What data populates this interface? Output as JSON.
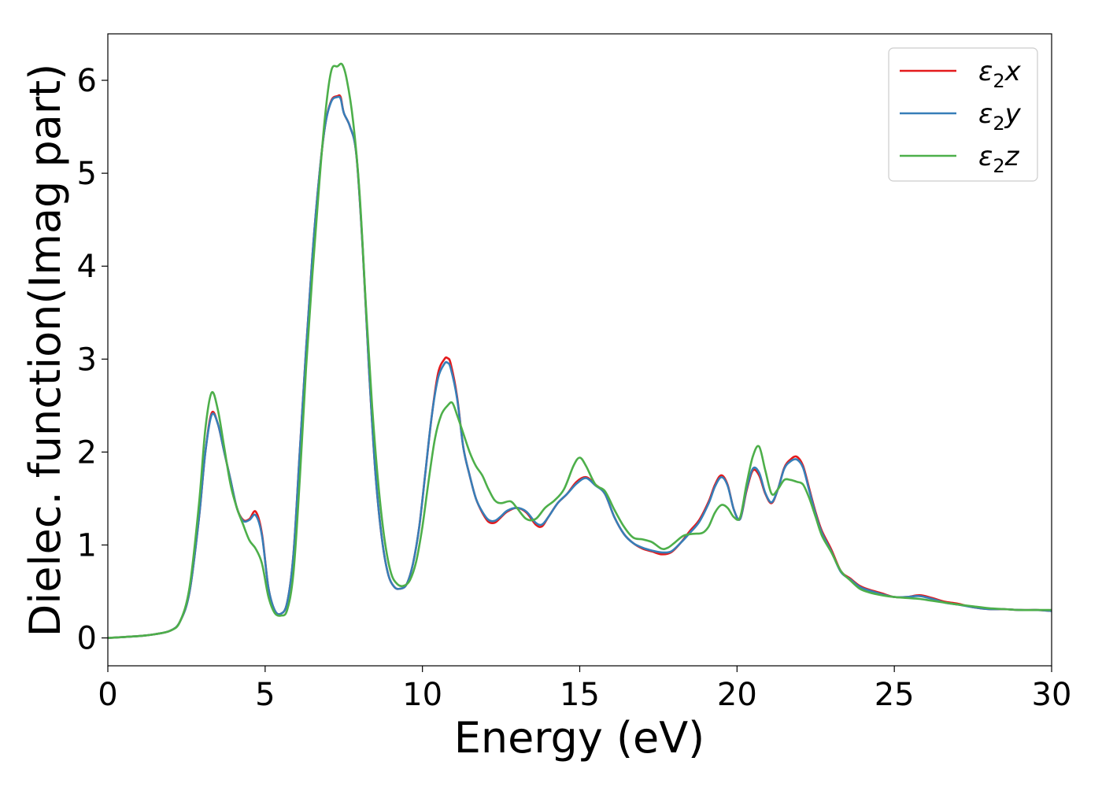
{
  "chart_data": {
    "type": "line",
    "title": "",
    "xlabel": "Energy (eV)",
    "ylabel": "Dielec. function(Imag part)",
    "xlim": [
      0,
      30
    ],
    "ylim": [
      -0.3,
      6.5
    ],
    "xticks": [
      0,
      5,
      10,
      15,
      20,
      25,
      30
    ],
    "yticks": [
      0,
      1,
      2,
      3,
      4,
      5,
      6
    ],
    "grid": false,
    "legend_position": "top-right",
    "series": [
      {
        "name": "ε2x",
        "legend_base": "ε",
        "legend_sub": "2",
        "legend_suffix": "x",
        "color": "#e41a1c",
        "x": [
          0,
          1,
          1.5,
          2,
          2.3,
          2.6,
          2.9,
          3.1,
          3.3,
          3.5,
          3.7,
          3.9,
          4.1,
          4.3,
          4.5,
          4.7,
          4.9,
          5.1,
          5.3,
          5.5,
          5.7,
          5.9,
          6.1,
          6.3,
          6.5,
          6.7,
          6.9,
          7.1,
          7.3,
          7.4,
          7.5,
          7.7,
          7.9,
          8.1,
          8.3,
          8.5,
          8.7,
          8.9,
          9.1,
          9.3,
          9.5,
          9.7,
          9.9,
          10.1,
          10.3,
          10.5,
          10.7,
          10.8,
          10.9,
          11.1,
          11.3,
          11.5,
          11.7,
          11.9,
          12.1,
          12.3,
          12.5,
          12.7,
          13.0,
          13.3,
          13.6,
          13.8,
          14.0,
          14.3,
          14.6,
          14.9,
          15.2,
          15.5,
          15.8,
          16.1,
          16.4,
          16.7,
          17.0,
          17.3,
          17.6,
          17.9,
          18.2,
          18.5,
          18.8,
          19.1,
          19.3,
          19.5,
          19.7,
          19.9,
          20.1,
          20.3,
          20.5,
          20.7,
          20.9,
          21.1,
          21.3,
          21.5,
          21.7,
          21.9,
          22.1,
          22.3,
          22.5,
          22.7,
          23.0,
          23.3,
          23.6,
          23.9,
          24.2,
          24.6,
          25.0,
          25.4,
          25.8,
          26.2,
          26.6,
          27.0,
          27.5,
          28.0,
          28.5,
          29.0,
          29.5,
          30.0
        ],
        "y": [
          0,
          0.02,
          0.04,
          0.08,
          0.18,
          0.5,
          1.3,
          2.0,
          2.42,
          2.3,
          2.0,
          1.7,
          1.4,
          1.27,
          1.28,
          1.36,
          1.12,
          0.55,
          0.3,
          0.26,
          0.38,
          0.9,
          2.0,
          3.1,
          4.1,
          4.9,
          5.5,
          5.78,
          5.83,
          5.82,
          5.65,
          5.5,
          5.2,
          4.2,
          2.9,
          1.8,
          1.1,
          0.7,
          0.55,
          0.53,
          0.58,
          0.8,
          1.2,
          1.8,
          2.4,
          2.85,
          3.0,
          3.01,
          2.95,
          2.6,
          2.05,
          1.75,
          1.5,
          1.35,
          1.25,
          1.24,
          1.3,
          1.36,
          1.4,
          1.35,
          1.22,
          1.2,
          1.3,
          1.45,
          1.55,
          1.68,
          1.73,
          1.65,
          1.55,
          1.3,
          1.12,
          1.02,
          0.96,
          0.93,
          0.9,
          0.92,
          1.02,
          1.15,
          1.27,
          1.47,
          1.65,
          1.75,
          1.65,
          1.38,
          1.28,
          1.58,
          1.8,
          1.75,
          1.55,
          1.45,
          1.6,
          1.83,
          1.92,
          1.95,
          1.85,
          1.6,
          1.35,
          1.15,
          0.95,
          0.72,
          0.64,
          0.56,
          0.52,
          0.48,
          0.44,
          0.44,
          0.46,
          0.43,
          0.39,
          0.37,
          0.33,
          0.31,
          0.31,
          0.3,
          0.3,
          0.29
        ]
      },
      {
        "name": "ε2y",
        "legend_base": "ε",
        "legend_sub": "2",
        "legend_suffix": "y",
        "color": "#377eb8",
        "x": [
          0,
          1,
          1.5,
          2,
          2.3,
          2.6,
          2.9,
          3.1,
          3.3,
          3.5,
          3.7,
          3.9,
          4.1,
          4.3,
          4.5,
          4.7,
          4.9,
          5.1,
          5.3,
          5.5,
          5.7,
          5.9,
          6.1,
          6.3,
          6.5,
          6.7,
          6.9,
          7.1,
          7.3,
          7.4,
          7.5,
          7.7,
          7.9,
          8.1,
          8.3,
          8.5,
          8.7,
          8.9,
          9.1,
          9.3,
          9.5,
          9.7,
          9.9,
          10.1,
          10.3,
          10.5,
          10.7,
          10.8,
          10.9,
          11.1,
          11.3,
          11.5,
          11.7,
          11.9,
          12.1,
          12.3,
          12.5,
          12.7,
          13.0,
          13.3,
          13.6,
          13.8,
          14.0,
          14.3,
          14.6,
          14.9,
          15.2,
          15.5,
          15.8,
          16.1,
          16.4,
          16.7,
          17.0,
          17.3,
          17.6,
          17.9,
          18.2,
          18.5,
          18.8,
          19.1,
          19.3,
          19.5,
          19.7,
          19.9,
          20.1,
          20.3,
          20.5,
          20.7,
          20.9,
          21.1,
          21.3,
          21.5,
          21.7,
          21.9,
          22.1,
          22.3,
          22.5,
          22.7,
          23.0,
          23.3,
          23.6,
          23.9,
          24.2,
          24.6,
          25.0,
          25.4,
          25.8,
          26.2,
          26.6,
          27.0,
          27.5,
          28.0,
          28.5,
          29.0,
          29.5,
          30.0
        ],
        "y": [
          0,
          0.02,
          0.04,
          0.08,
          0.18,
          0.5,
          1.3,
          2.0,
          2.4,
          2.3,
          2.0,
          1.7,
          1.4,
          1.26,
          1.27,
          1.32,
          1.1,
          0.55,
          0.3,
          0.26,
          0.38,
          0.9,
          2.0,
          3.1,
          4.1,
          4.9,
          5.5,
          5.77,
          5.82,
          5.8,
          5.65,
          5.5,
          5.2,
          4.2,
          2.9,
          1.8,
          1.1,
          0.7,
          0.55,
          0.53,
          0.58,
          0.8,
          1.2,
          1.8,
          2.4,
          2.8,
          2.95,
          2.96,
          2.9,
          2.58,
          2.05,
          1.75,
          1.5,
          1.36,
          1.27,
          1.26,
          1.31,
          1.37,
          1.4,
          1.36,
          1.24,
          1.22,
          1.3,
          1.45,
          1.55,
          1.66,
          1.72,
          1.64,
          1.55,
          1.3,
          1.12,
          1.02,
          0.97,
          0.94,
          0.92,
          0.93,
          1.02,
          1.13,
          1.25,
          1.45,
          1.63,
          1.73,
          1.64,
          1.38,
          1.28,
          1.6,
          1.82,
          1.78,
          1.56,
          1.46,
          1.6,
          1.82,
          1.9,
          1.92,
          1.83,
          1.58,
          1.33,
          1.13,
          0.93,
          0.71,
          0.63,
          0.55,
          0.51,
          0.47,
          0.44,
          0.44,
          0.45,
          0.42,
          0.38,
          0.36,
          0.33,
          0.31,
          0.31,
          0.3,
          0.3,
          0.29
        ]
      },
      {
        "name": "ε2z",
        "legend_base": "ε",
        "legend_sub": "2",
        "legend_suffix": "z",
        "color": "#4daf4a",
        "x": [
          0,
          1,
          1.5,
          2,
          2.3,
          2.6,
          2.9,
          3.1,
          3.3,
          3.5,
          3.7,
          3.9,
          4.1,
          4.3,
          4.5,
          4.7,
          4.9,
          5.1,
          5.3,
          5.5,
          5.7,
          5.9,
          6.1,
          6.3,
          6.5,
          6.7,
          6.9,
          7.1,
          7.3,
          7.45,
          7.6,
          7.8,
          8.0,
          8.2,
          8.4,
          8.6,
          8.8,
          9.0,
          9.2,
          9.4,
          9.6,
          9.8,
          10.0,
          10.2,
          10.4,
          10.6,
          10.8,
          10.95,
          11.1,
          11.3,
          11.5,
          11.7,
          11.9,
          12.1,
          12.3,
          12.5,
          12.8,
          13.0,
          13.3,
          13.6,
          13.9,
          14.2,
          14.5,
          14.8,
          15.0,
          15.2,
          15.5,
          15.8,
          16.1,
          16.4,
          16.7,
          17.0,
          17.3,
          17.6,
          17.8,
          18.0,
          18.3,
          18.6,
          18.9,
          19.1,
          19.3,
          19.5,
          19.7,
          19.9,
          20.1,
          20.3,
          20.5,
          20.7,
          20.9,
          21.1,
          21.3,
          21.5,
          21.7,
          21.9,
          22.1,
          22.3,
          22.5,
          22.7,
          23.0,
          23.3,
          23.6,
          23.9,
          24.2,
          24.6,
          25.0,
          25.4,
          25.8,
          26.2,
          26.6,
          27.0,
          27.5,
          28.0,
          28.5,
          29.0,
          29.5,
          30.0
        ],
        "y": [
          0,
          0.02,
          0.04,
          0.08,
          0.18,
          0.55,
          1.45,
          2.25,
          2.64,
          2.45,
          2.05,
          1.65,
          1.4,
          1.22,
          1.05,
          0.96,
          0.8,
          0.45,
          0.27,
          0.24,
          0.3,
          0.7,
          1.7,
          2.9,
          3.9,
          4.8,
          5.6,
          6.1,
          6.15,
          6.17,
          6.0,
          5.55,
          4.8,
          3.6,
          2.5,
          1.65,
          1.05,
          0.7,
          0.58,
          0.56,
          0.62,
          0.82,
          1.2,
          1.7,
          2.15,
          2.4,
          2.5,
          2.53,
          2.4,
          2.2,
          2.0,
          1.85,
          1.75,
          1.6,
          1.48,
          1.45,
          1.47,
          1.4,
          1.28,
          1.28,
          1.4,
          1.48,
          1.6,
          1.85,
          1.94,
          1.85,
          1.65,
          1.58,
          1.38,
          1.2,
          1.08,
          1.06,
          1.03,
          0.96,
          0.97,
          1.02,
          1.1,
          1.12,
          1.13,
          1.2,
          1.35,
          1.43,
          1.4,
          1.3,
          1.3,
          1.65,
          1.95,
          2.06,
          1.8,
          1.55,
          1.6,
          1.7,
          1.7,
          1.68,
          1.65,
          1.5,
          1.3,
          1.1,
          0.92,
          0.72,
          0.62,
          0.53,
          0.49,
          0.46,
          0.44,
          0.43,
          0.42,
          0.4,
          0.38,
          0.36,
          0.34,
          0.32,
          0.31,
          0.3,
          0.3,
          0.3
        ]
      }
    ]
  }
}
